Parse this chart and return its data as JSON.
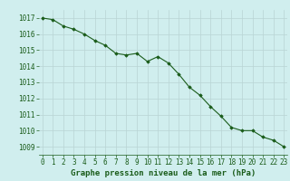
{
  "hours": [
    0,
    1,
    2,
    3,
    4,
    5,
    6,
    7,
    8,
    9,
    10,
    11,
    12,
    13,
    14,
    15,
    16,
    17,
    18,
    19,
    20,
    21,
    22,
    23
  ],
  "pressure": [
    1017.0,
    1016.9,
    1016.5,
    1016.3,
    1016.0,
    1015.6,
    1015.3,
    1014.8,
    1014.7,
    1014.8,
    1014.3,
    1014.6,
    1014.2,
    1013.5,
    1012.7,
    1012.2,
    1011.5,
    1010.9,
    1010.2,
    1010.0,
    1010.0,
    1009.6,
    1009.4,
    1009.0
  ],
  "line_color": "#1a5c1a",
  "marker": "D",
  "marker_size": 1.8,
  "bg_color": "#d0eeee",
  "grid_color": "#b8d4d4",
  "xlabel": "Graphe pression niveau de la mer (hPa)",
  "xlabel_color": "#1a5c1a",
  "xlabel_fontsize": 6.5,
  "tick_color": "#1a5c1a",
  "tick_fontsize": 5.5,
  "ylim": [
    1008.5,
    1017.5
  ],
  "yticks": [
    1009,
    1010,
    1011,
    1012,
    1013,
    1014,
    1015,
    1016,
    1017
  ],
  "xticks": [
    0,
    1,
    2,
    3,
    4,
    5,
    6,
    7,
    8,
    9,
    10,
    11,
    12,
    13,
    14,
    15,
    16,
    17,
    18,
    19,
    20,
    21,
    22,
    23
  ],
  "xlim": [
    -0.3,
    23.3
  ]
}
